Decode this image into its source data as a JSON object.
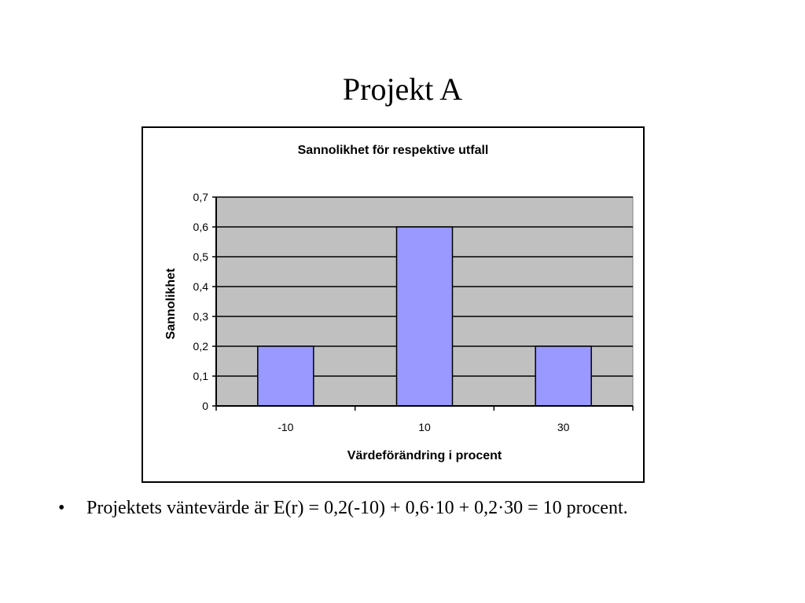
{
  "slide": {
    "title": "Projekt A",
    "bullet_symbol": "•",
    "bullet_text": "Projektets väntevärde är E(r) = 0,2(-10) + 0,6·10 + 0,2·30 = 10 procent."
  },
  "chart_data": {
    "type": "bar",
    "title": "Sannolikhet för respektive utfall",
    "xlabel": "Värdeförändring i procent",
    "ylabel": "Sannolikhet",
    "categories": [
      "-10",
      "10",
      "30"
    ],
    "values": [
      0.2,
      0.6,
      0.2
    ],
    "ylim": [
      0,
      0.7
    ],
    "yticks": [
      "0",
      "0,1",
      "0,2",
      "0,3",
      "0,4",
      "0,5",
      "0,6",
      "0,7"
    ],
    "grid": true,
    "legend": "none",
    "colors": {
      "bar_fill": "#9999ff",
      "plot_background": "#c0c0c0"
    }
  }
}
